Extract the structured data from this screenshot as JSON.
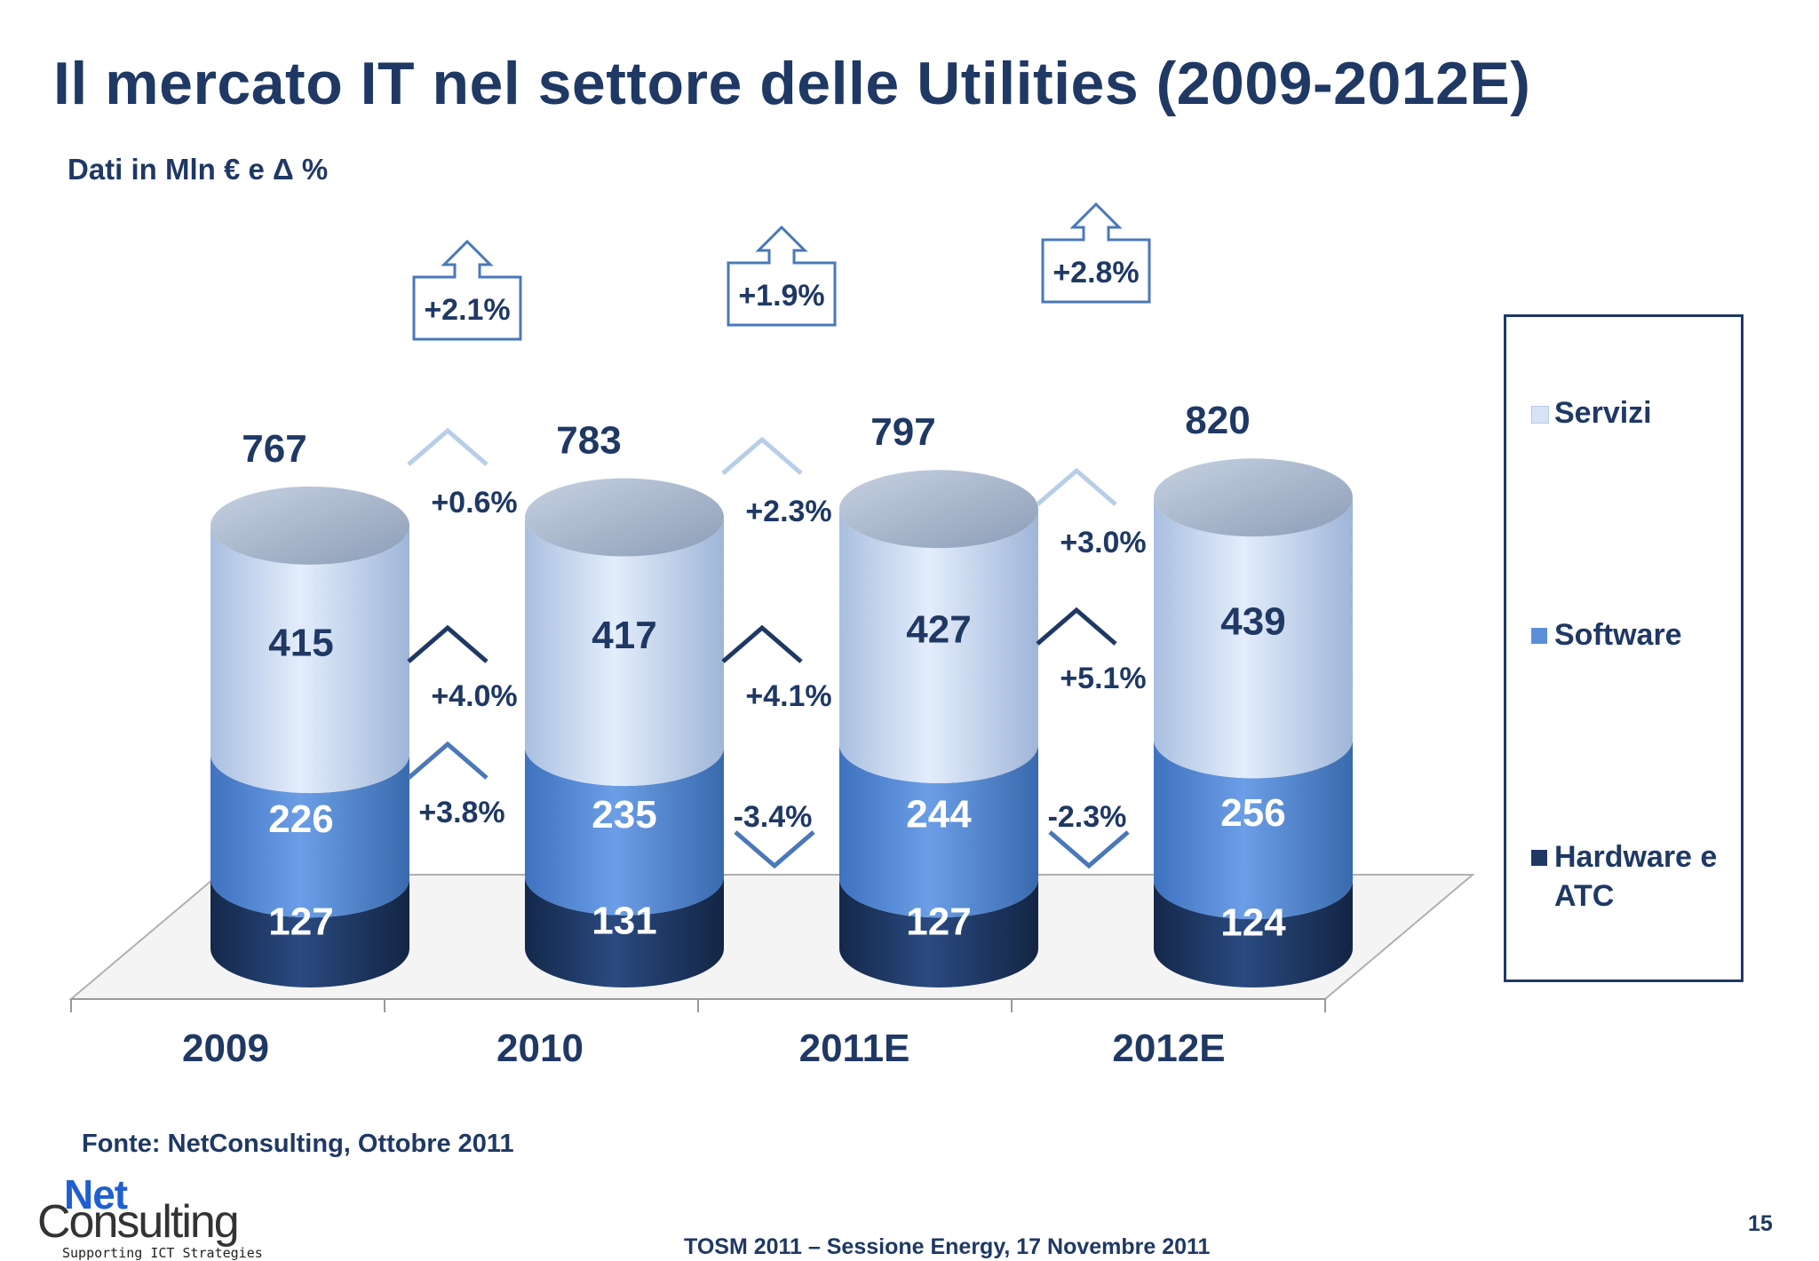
{
  "title": "Il mercato IT nel settore delle Utilities (2009-2012E)",
  "subtitle": "Dati in Mln € e Δ %",
  "source": "Fonte: NetConsulting, Ottobre 2011",
  "footer": "TOSM 2011 – Sessione Energy, 17 Novembre 2011",
  "page_number": "15",
  "logo": {
    "net": "Net",
    "consulting": "Consulting",
    "tagline": "Supporting ICT Strategies"
  },
  "legend": {
    "servizi": "Servizi",
    "software": "Software",
    "hardware_line1": "Hardware e",
    "hardware_line2": "ATC"
  },
  "colors": {
    "servizi": "#cfe0f7",
    "software": "#5b8fd8",
    "hardware": "#1f3864",
    "text": "#1f3864",
    "arrow_total": "#4a78b8"
  },
  "chart_data": {
    "type": "bar",
    "stacked": true,
    "categories": [
      "2009",
      "2010",
      "2011E",
      "2012E"
    ],
    "series": [
      {
        "name": "Hardware e ATC",
        "values": [
          127,
          131,
          127,
          124
        ]
      },
      {
        "name": "Software",
        "values": [
          226,
          235,
          244,
          256
        ]
      },
      {
        "name": "Servizi",
        "values": [
          415,
          417,
          427,
          439
        ]
      }
    ],
    "totals": [
      "767",
      "783",
      "797",
      "820"
    ],
    "total_growth": [
      "+2.1%",
      "+1.9%",
      "+2.8%"
    ],
    "servizi_growth": [
      {
        "label": "+0.6%",
        "direction": "up"
      },
      {
        "label": "+2.3%",
        "direction": "up"
      },
      {
        "label": "+3.0%",
        "direction": "up"
      }
    ],
    "software_growth": [
      {
        "label": "+4.0%",
        "direction": "up"
      },
      {
        "label": "+4.1%",
        "direction": "up"
      },
      {
        "label": "+5.1%",
        "direction": "up"
      }
    ],
    "hardware_growth": [
      {
        "label": "+3.8%",
        "direction": "up"
      },
      {
        "label": "-3.4%",
        "direction": "down"
      },
      {
        "label": "-2.3%",
        "direction": "down"
      }
    ],
    "legend_position": "right"
  }
}
